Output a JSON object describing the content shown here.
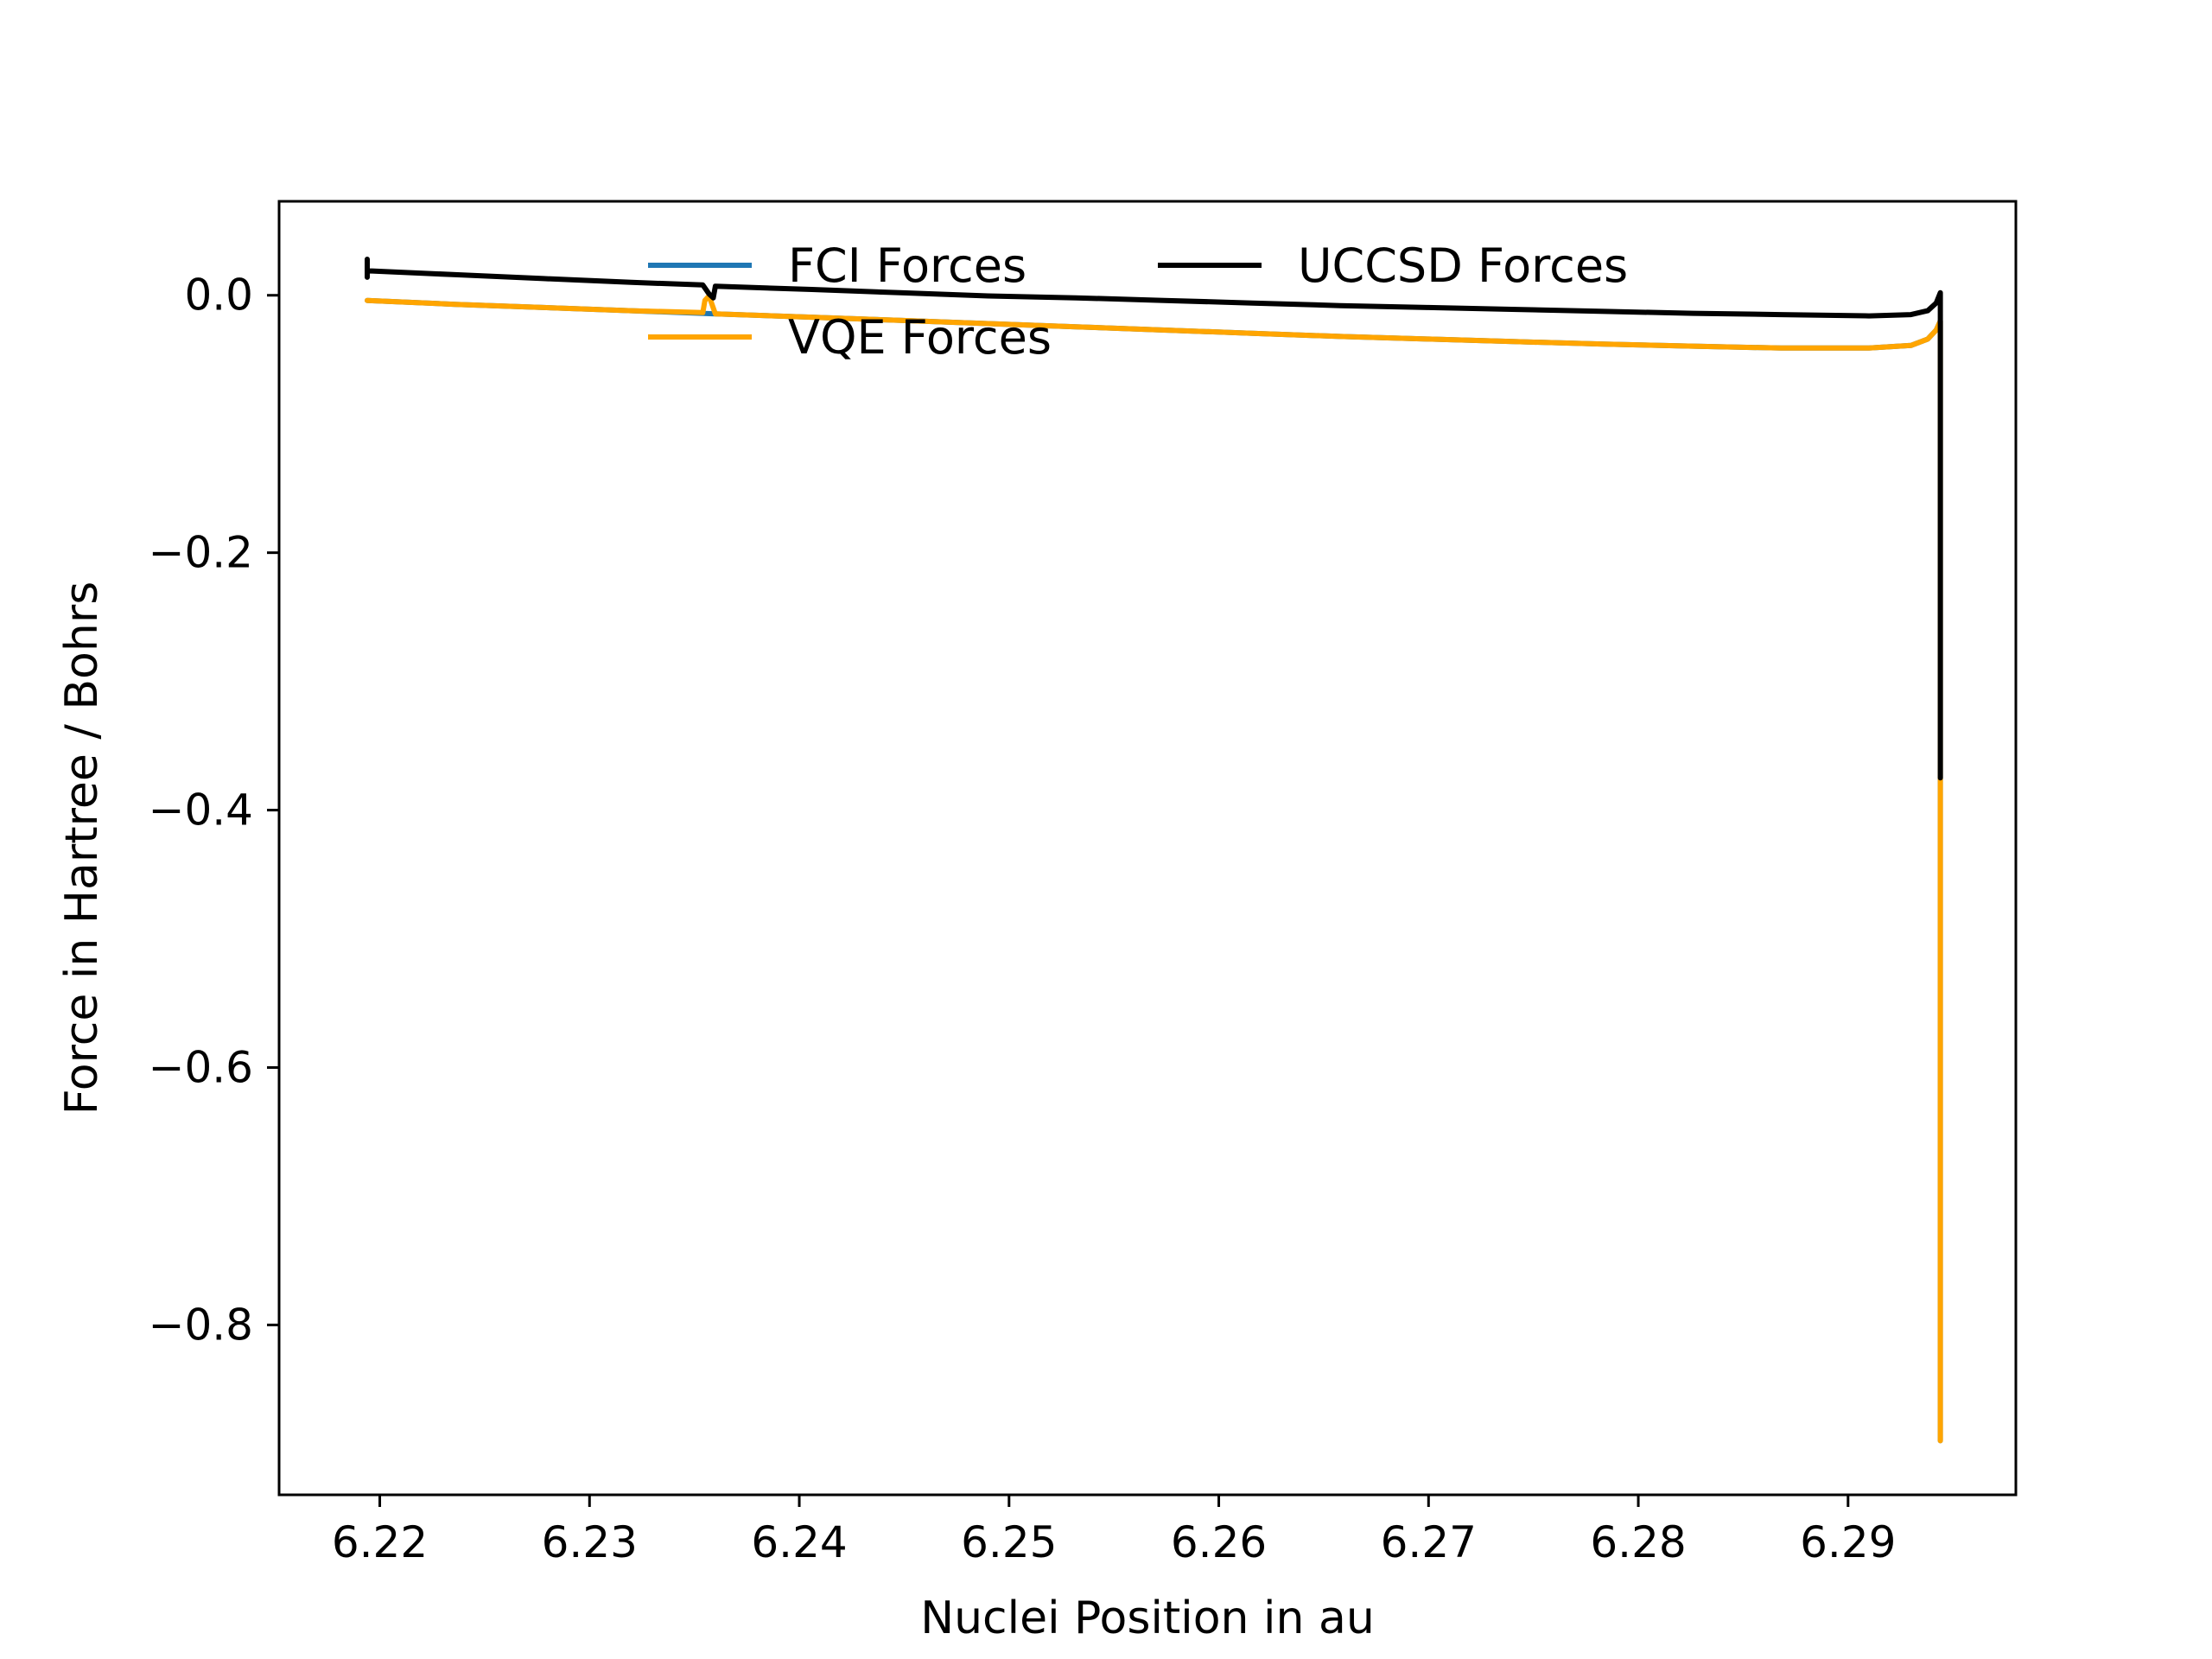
{
  "chart_data": {
    "type": "line",
    "title": "",
    "xlabel": "Nuclei Position in au",
    "ylabel": "Force in Hartree / Bohrs",
    "xlim": [
      6.2152,
      6.298
    ],
    "ylim": [
      -0.932,
      0.073
    ],
    "xticks": [
      6.22,
      6.23,
      6.24,
      6.25,
      6.26,
      6.27,
      6.28,
      6.29
    ],
    "yticks": [
      0.0,
      -0.2,
      -0.4,
      -0.6,
      -0.8
    ],
    "grid": false,
    "legend": {
      "placement": "top-center",
      "columns": 2
    },
    "series": [
      {
        "name": "FCI Forces",
        "color": "#1f77b4",
        "x": [
          6.2194,
          6.2236,
          6.2278,
          6.232,
          6.236,
          6.2406,
          6.2448,
          6.249,
          6.2532,
          6.2574,
          6.2616,
          6.2658,
          6.27,
          6.2742,
          6.2784,
          6.2826,
          6.2868,
          6.291,
          6.293,
          6.2938,
          6.2942,
          6.2944,
          6.2944
        ],
        "y": [
          -0.004,
          -0.007,
          -0.0095,
          -0.012,
          -0.0145,
          -0.017,
          -0.0195,
          -0.022,
          -0.0245,
          -0.027,
          -0.0295,
          -0.032,
          -0.034,
          -0.036,
          -0.038,
          -0.0395,
          -0.041,
          -0.041,
          -0.039,
          -0.034,
          -0.027,
          -0.02,
          -0.89
        ]
      },
      {
        "name": "VQE Forces",
        "color": "#ffa500",
        "x": [
          6.2194,
          6.2236,
          6.2278,
          6.232,
          6.2354,
          6.2355,
          6.2357,
          6.236,
          6.2406,
          6.2448,
          6.249,
          6.2532,
          6.2574,
          6.2616,
          6.2658,
          6.27,
          6.2742,
          6.2784,
          6.2826,
          6.2868,
          6.291,
          6.293,
          6.2938,
          6.2942,
          6.2944,
          6.2944
        ],
        "y": [
          -0.004,
          -0.007,
          -0.0095,
          -0.012,
          -0.0135,
          -0.004,
          -0.0005,
          -0.0145,
          -0.017,
          -0.0195,
          -0.022,
          -0.0245,
          -0.027,
          -0.0295,
          -0.032,
          -0.034,
          -0.036,
          -0.038,
          -0.0395,
          -0.041,
          -0.041,
          -0.039,
          -0.034,
          -0.027,
          -0.02,
          -0.89
        ]
      },
      {
        "name": "UCCSD Forces",
        "color": "#000000",
        "x": [
          6.2194,
          6.2194,
          6.2194,
          6.2236,
          6.2278,
          6.232,
          6.2354,
          6.2357,
          6.2359,
          6.236,
          6.2406,
          6.2448,
          6.249,
          6.2532,
          6.2574,
          6.2616,
          6.2658,
          6.27,
          6.2742,
          6.2784,
          6.2826,
          6.2868,
          6.291,
          6.293,
          6.2938,
          6.2942,
          6.2944,
          6.2944
        ],
        "y": [
          0.028,
          0.014,
          0.019,
          0.016,
          0.013,
          0.01,
          0.008,
          0.001,
          -0.002,
          0.007,
          0.0045,
          0.002,
          -0.0005,
          -0.002,
          -0.004,
          -0.006,
          -0.008,
          -0.0095,
          -0.011,
          -0.0125,
          -0.014,
          -0.015,
          -0.016,
          -0.015,
          -0.012,
          -0.006,
          0.002,
          -0.375
        ]
      }
    ]
  }
}
